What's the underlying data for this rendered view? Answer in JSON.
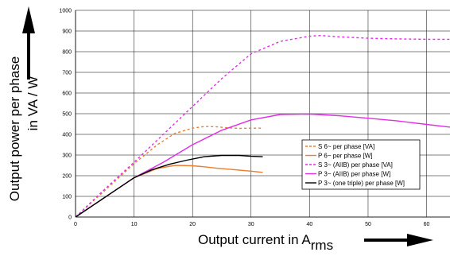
{
  "chart_data": {
    "type": "line",
    "title": "",
    "xlabel": "Output current in A",
    "xlabel_sub": "rms",
    "ylabel_line1": "Output power per phase",
    "ylabel_line2": "in VA / W",
    "xlim": [
      0,
      64
    ],
    "ylim": [
      0,
      1000
    ],
    "x_ticks": [
      0,
      10,
      20,
      30,
      40,
      50,
      60
    ],
    "y_ticks": [
      0,
      100,
      200,
      300,
      400,
      500,
      600,
      700,
      800,
      900,
      1000
    ],
    "grid": true,
    "legend_position": "right-center",
    "series": [
      {
        "name": "S 6~ per phase [VA]",
        "color": "#ed7d31",
        "dashed": true,
        "x": [
          0,
          5,
          10,
          14,
          17,
          20,
          22,
          24,
          26,
          28,
          30,
          32
        ],
        "y": [
          0,
          128,
          258,
          350,
          405,
          430,
          438,
          437,
          432,
          429,
          430,
          430
        ]
      },
      {
        "name": "P 6~ per phase [W]",
        "color": "#ed7d31",
        "dashed": false,
        "x": [
          0,
          5,
          10,
          14,
          17,
          20,
          22,
          24,
          26,
          28,
          30,
          32
        ],
        "y": [
          0,
          95,
          190,
          235,
          250,
          248,
          243,
          237,
          232,
          227,
          222,
          216
        ]
      },
      {
        "name": "S 3~ (AIIB) per phase [VA]",
        "color": "#e02ee8",
        "dashed": true,
        "x": [
          0,
          5,
          10,
          15,
          20,
          25,
          30,
          35,
          40,
          42,
          45,
          50,
          55,
          60,
          64
        ],
        "y": [
          0,
          135,
          265,
          400,
          535,
          670,
          790,
          850,
          875,
          878,
          872,
          865,
          862,
          860,
          860
        ]
      },
      {
        "name": "P 3~ (AIIB) per phase [W]",
        "color": "#e02ee8",
        "dashed": false,
        "x": [
          0,
          5,
          10,
          15,
          20,
          25,
          30,
          35,
          40,
          45,
          50,
          55,
          60,
          64
        ],
        "y": [
          0,
          95,
          190,
          265,
          350,
          420,
          470,
          496,
          498,
          490,
          478,
          465,
          448,
          435
        ]
      },
      {
        "name": "P 3~ (one triple) per phase [W]",
        "color": "#000000",
        "dashed": false,
        "x": [
          0,
          5,
          10,
          13,
          16,
          19,
          22,
          25,
          28,
          30,
          32
        ],
        "y": [
          0,
          95,
          190,
          228,
          255,
          275,
          292,
          298,
          298,
          294,
          292
        ]
      }
    ]
  }
}
